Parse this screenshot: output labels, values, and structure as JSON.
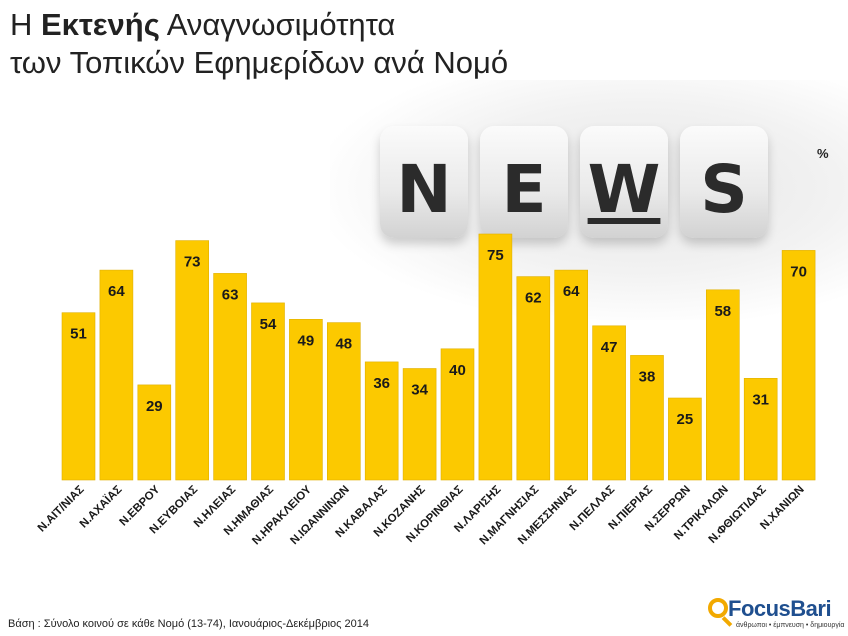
{
  "title": {
    "line1_prefix": "Η ",
    "line1_bold": "Εκτενής",
    "line1_suffix": " Αναγνωσιμότητα",
    "line2": "των Τοπικών Εφημερίδων ανά Νομό"
  },
  "unit_label": "%",
  "image": {
    "dice_letters": [
      "N",
      "E",
      "W",
      "S"
    ]
  },
  "footer": "Βάση : Σύνολο κοινού σε κάθε Νομό (13-74), Ιανουάριος-Δεκέμβριος 2014",
  "logo": {
    "name": "FocusBari",
    "tagline": "άνθρωποι • έμπνευση • δημιουργία"
  },
  "colors": {
    "bar": "#fcc900",
    "bar_edge": "#e0b000",
    "label": "#1a1a1a"
  },
  "chart_data": {
    "type": "bar",
    "categories": [
      "Ν.ΑΙΤ/ΝΙΑΣ",
      "Ν.ΑΧΑΪΑΣ",
      "Ν.ΕΒΡΟΥ",
      "Ν.ΕΥΒΟΙΑΣ",
      "Ν.ΗΛΕΙΑΣ",
      "Ν.ΗΜΑΘΙΑΣ",
      "Ν.ΗΡΑΚΛΕΙΟΥ",
      "Ν.ΙΩΑΝΝΙΝΩΝ",
      "Ν.ΚΑΒΑΛΑΣ",
      "Ν.ΚΟΖΑΝΗΣ",
      "Ν.ΚΟΡΙΝΘΙΑΣ",
      "Ν.ΛΑΡΙΣΗΣ",
      "Ν.ΜΑΓΝΗΣΙΑΣ",
      "Ν.ΜΕΣΣΗΝΙΑΣ",
      "Ν.ΠΕΛΛΑΣ",
      "Ν.ΠΙΕΡΙΑΣ",
      "Ν.ΣΕΡΡΩΝ",
      "Ν.ΤΡΙΚΑΛΩΝ",
      "Ν.ΦΘΙΩΤΙΔΑΣ",
      "Ν.ΧΑΝΙΩΝ"
    ],
    "values": [
      51,
      64,
      29,
      73,
      63,
      54,
      49,
      48,
      36,
      34,
      40,
      75,
      62,
      64,
      47,
      38,
      25,
      58,
      31,
      70
    ],
    "ylim": [
      0,
      100
    ],
    "grid": false,
    "legend": "none",
    "data_labels": true
  }
}
